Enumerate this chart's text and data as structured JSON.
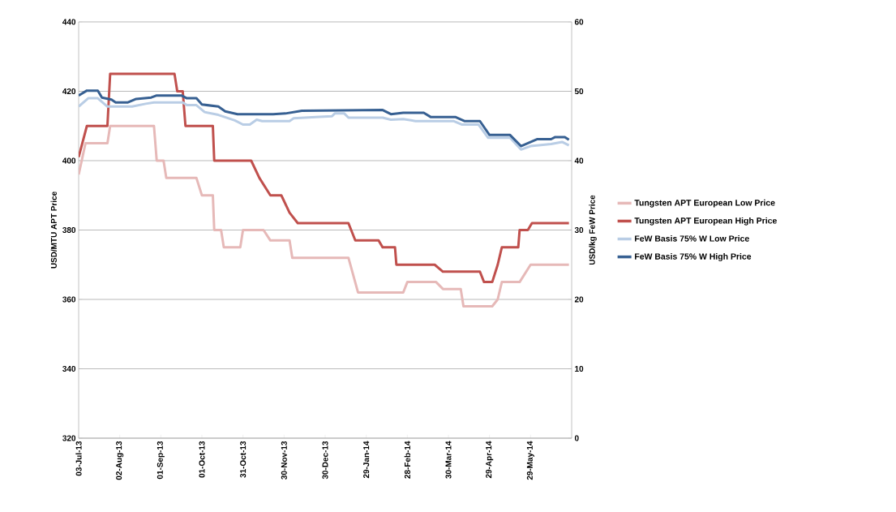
{
  "chart_data": {
    "type": "line",
    "ylabel": "USD/MTU APT Price",
    "y2label": "USD/kg FeW Price",
    "xlim": [
      "2013-07-03",
      "2014-06-28"
    ],
    "xticks": [
      {
        "value": "2013-07-03",
        "label": "03-Jul-13"
      },
      {
        "value": "2013-08-02",
        "label": "02-Aug-13"
      },
      {
        "value": "2013-09-01",
        "label": "01-Sep-13"
      },
      {
        "value": "2013-10-01",
        "label": "01-Oct-13"
      },
      {
        "value": "2013-10-31",
        "label": "31-Oct-13"
      },
      {
        "value": "2013-11-30",
        "label": "30-Nov-13"
      },
      {
        "value": "2013-12-30",
        "label": "30-Dec-13"
      },
      {
        "value": "2014-01-29",
        "label": "29-Jan-14"
      },
      {
        "value": "2014-02-28",
        "label": "28-Feb-14"
      },
      {
        "value": "2014-03-30",
        "label": "30-Mar-14"
      },
      {
        "value": "2014-04-29",
        "label": "29-Apr-14"
      },
      {
        "value": "2014-05-29",
        "label": "29-May-14"
      }
    ],
    "ylim": [
      320,
      440
    ],
    "yticks": [
      320,
      340,
      360,
      380,
      400,
      420,
      440
    ],
    "y2lim": [
      0,
      60
    ],
    "y2ticks": [
      0,
      10,
      20,
      30,
      40,
      50,
      60
    ],
    "grid": "y",
    "legend": "right",
    "series": [
      {
        "name": "Tungsten APT European Low Price",
        "color": "#e6b9b8",
        "x": [
          "2013-07-03",
          "2013-07-08",
          "2013-07-24",
          "2013-07-26",
          "2013-08-27",
          "2013-08-29",
          "2013-09-03",
          "2013-09-05",
          "2013-09-27",
          "2013-10-01",
          "2013-10-09",
          "2013-10-10",
          "2013-10-15",
          "2013-10-17",
          "2013-10-29",
          "2013-10-31",
          "2013-11-15",
          "2013-11-20",
          "2013-12-04",
          "2013-12-06",
          "2014-01-16",
          "2014-01-23",
          "2014-02-25",
          "2014-02-28",
          "2014-03-21",
          "2014-03-26",
          "2014-04-08",
          "2014-04-10",
          "2014-05-01",
          "2014-05-05",
          "2014-05-08",
          "2014-05-21",
          "2014-05-29",
          "2014-06-26"
        ],
        "values": [
          396,
          405,
          405,
          410,
          410,
          400,
          400,
          395,
          395,
          390,
          390,
          380,
          380,
          375,
          375,
          380,
          380,
          377,
          377,
          372,
          372,
          362,
          362,
          365,
          365,
          363,
          363,
          358,
          358,
          360,
          365,
          365,
          370,
          370
        ]
      },
      {
        "name": "Tungsten APT European High Price",
        "color": "#c0504d",
        "x": [
          "2013-07-03",
          "2013-07-09",
          "2013-07-24",
          "2013-07-26",
          "2013-09-11",
          "2013-09-13",
          "2013-09-17",
          "2013-09-19",
          "2013-10-09",
          "2013-10-10",
          "2013-11-06",
          "2013-11-12",
          "2013-11-20",
          "2013-11-28",
          "2013-12-04",
          "2013-12-10",
          "2014-01-16",
          "2014-01-21",
          "2014-02-07",
          "2014-02-10",
          "2014-02-19",
          "2014-02-20",
          "2014-03-20",
          "2014-03-26",
          "2014-04-22",
          "2014-04-25",
          "2014-05-01",
          "2014-05-05",
          "2014-05-08",
          "2014-05-20",
          "2014-05-21",
          "2014-05-27",
          "2014-05-30",
          "2014-06-26"
        ],
        "values": [
          401,
          410,
          410,
          425,
          425,
          420,
          420,
          410,
          410,
          400,
          400,
          395,
          390,
          390,
          385,
          382,
          382,
          377,
          377,
          375,
          375,
          370,
          370,
          368,
          368,
          365,
          365,
          370,
          375,
          375,
          380,
          380,
          382,
          382
        ]
      },
      {
        "name": "FeW Basis 75% W Low Price",
        "color": "#b9cde5",
        "axis": "y2",
        "x": [
          "2013-07-03",
          "2013-07-10",
          "2013-07-17",
          "2013-07-24",
          "2013-08-11",
          "2013-08-21",
          "2013-08-27",
          "2013-09-17",
          "2013-09-20",
          "2013-09-27",
          "2013-10-03",
          "2013-10-13",
          "2013-10-25",
          "2013-10-31",
          "2013-11-05",
          "2013-11-10",
          "2013-11-14",
          "2013-12-04",
          "2013-12-07",
          "2013-12-23",
          "2014-01-04",
          "2014-01-06",
          "2014-01-13",
          "2014-01-16",
          "2014-02-10",
          "2014-02-16",
          "2014-02-25",
          "2014-03-06",
          "2014-04-03",
          "2014-04-09",
          "2014-04-21",
          "2014-04-28",
          "2014-05-14",
          "2014-05-22",
          "2014-05-29",
          "2014-06-13",
          "2014-06-21",
          "2014-06-26"
        ],
        "values": [
          47.8,
          49.0,
          49.0,
          47.8,
          47.8,
          48.2,
          48.4,
          48.4,
          48.0,
          48.0,
          47.0,
          46.6,
          45.8,
          45.2,
          45.2,
          45.9,
          45.7,
          45.7,
          46.1,
          46.3,
          46.4,
          46.8,
          46.8,
          46.2,
          46.2,
          45.9,
          46.0,
          45.7,
          45.7,
          45.2,
          45.2,
          43.3,
          43.3,
          41.6,
          42.1,
          42.4,
          42.7,
          42.2
        ]
      },
      {
        "name": "FeW Basis 75% W High Price",
        "color": "#376092",
        "axis": "y2",
        "x": [
          "2013-07-03",
          "2013-07-09",
          "2013-07-17",
          "2013-07-20",
          "2013-07-27",
          "2013-07-30",
          "2013-08-08",
          "2013-08-14",
          "2013-08-25",
          "2013-08-29",
          "2013-09-16",
          "2013-09-20",
          "2013-09-27",
          "2013-10-01",
          "2013-10-13",
          "2013-10-18",
          "2013-10-27",
          "2013-11-22",
          "2013-12-01",
          "2013-12-13",
          "2014-02-10",
          "2014-02-16",
          "2014-02-25",
          "2014-03-12",
          "2014-03-17",
          "2014-04-04",
          "2014-04-11",
          "2014-04-22",
          "2014-04-29",
          "2014-05-14",
          "2014-05-22",
          "2014-06-03",
          "2014-06-13",
          "2014-06-16",
          "2014-06-23",
          "2014-06-26"
        ],
        "values": [
          49.4,
          50.1,
          50.1,
          49.1,
          48.8,
          48.4,
          48.4,
          48.9,
          49.1,
          49.4,
          49.4,
          49.0,
          49.0,
          48.1,
          47.8,
          47.1,
          46.7,
          46.7,
          46.8,
          47.2,
          47.3,
          46.7,
          46.9,
          46.9,
          46.3,
          46.3,
          45.7,
          45.7,
          43.7,
          43.7,
          42.1,
          43.1,
          43.1,
          43.4,
          43.4,
          43.0
        ]
      }
    ]
  }
}
